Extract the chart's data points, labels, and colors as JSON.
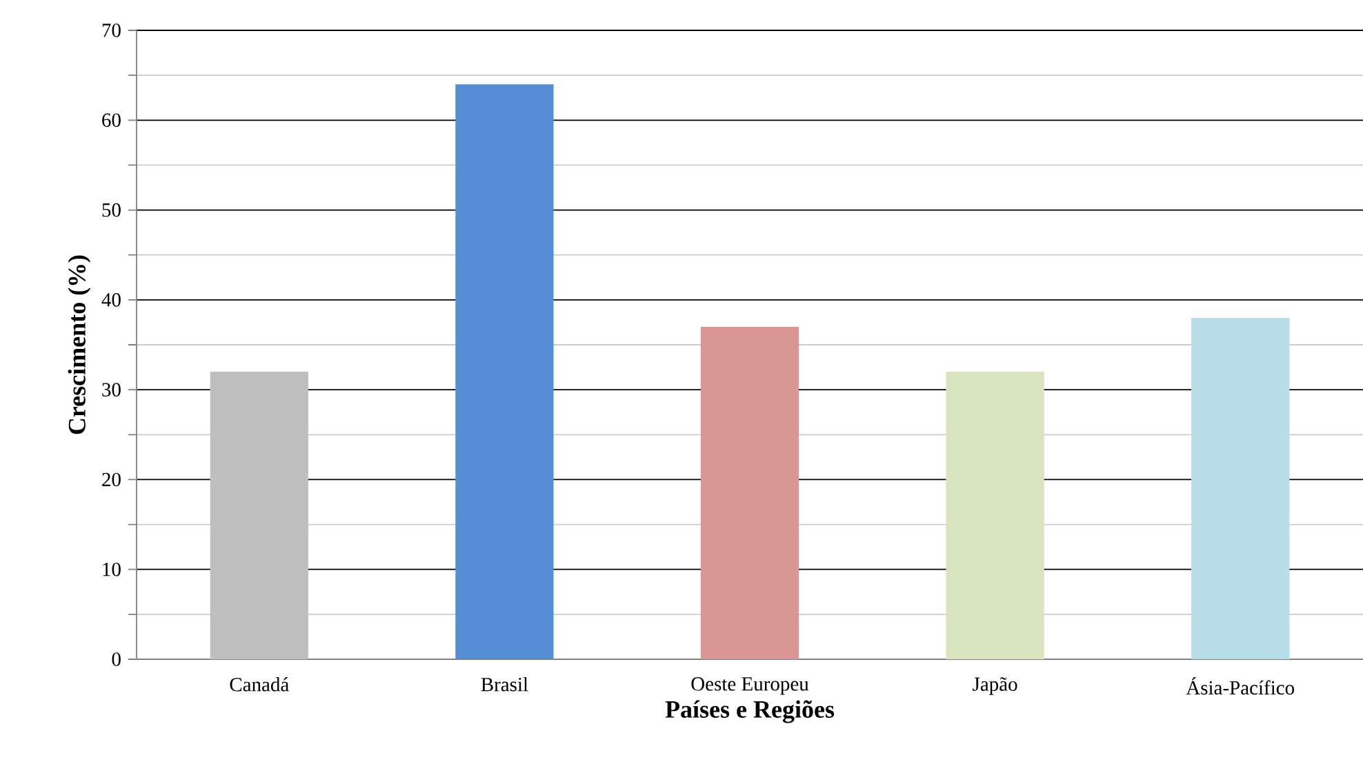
{
  "chart_data": {
    "type": "bar",
    "xlabel": "Países e Regiões",
    "ylabel": "Crescimento (%)",
    "categories": [
      "Canadá",
      "Brasil",
      "Oeste Europeu",
      "Japão",
      "Ásia-Pacífico"
    ],
    "values": [
      32,
      64,
      37,
      32,
      38
    ],
    "colors": [
      "#bfbfbf",
      "#558ed5",
      "#d99694",
      "#d7e4bd",
      "#b7dde8"
    ],
    "ylim": [
      0,
      70
    ],
    "yticks": [
      0,
      10,
      20,
      30,
      40,
      50,
      60,
      70
    ],
    "grid": "y"
  }
}
